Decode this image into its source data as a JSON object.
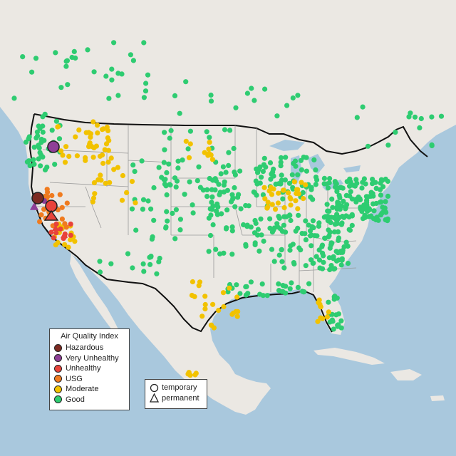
{
  "colors": {
    "ocean": "#a9c8dd",
    "land": "#e9e6e1",
    "canada_land": "#edeae6",
    "border": "#111111",
    "state_line": "#9a9a9a",
    "hazardous": "#7e2b22",
    "very_unhealthy": "#8f3f97",
    "unhealthy": "#e8433a",
    "usg": "#f07b1f",
    "moderate": "#f2c200",
    "good": "#2ecc71"
  },
  "legend": {
    "title": "Air Quality Index",
    "categories": [
      {
        "label": "Hazardous",
        "color": "#7e2b22"
      },
      {
        "label": "Very Unhealthy",
        "color": "#8f3f97"
      },
      {
        "label": "Unhealthy",
        "color": "#e8433a"
      },
      {
        "label": "USG",
        "color": "#f07b1f"
      },
      {
        "label": "Moderate",
        "color": "#f2c200"
      },
      {
        "label": "Good",
        "color": "#2ecc71"
      }
    ],
    "types": [
      {
        "label": "temporary",
        "icon": "circle-icon"
      },
      {
        "label": "permanent",
        "icon": "triangle-icon"
      }
    ]
  }
}
